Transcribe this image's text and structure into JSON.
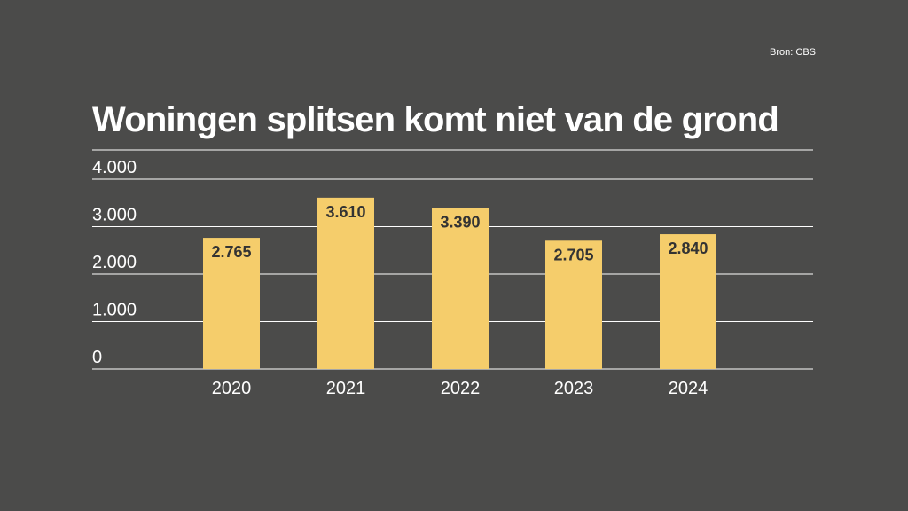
{
  "source": "Bron: CBS",
  "colors": {
    "background": "#4b4b4a",
    "bar": "#f5cd6b",
    "grid": "#ffffff",
    "value_label": "#333333"
  },
  "chart_data": {
    "type": "bar",
    "title": "Woningen splitsen komt niet van de grond",
    "xlabel": "",
    "ylabel": "",
    "categories": [
      "2020",
      "2021",
      "2022",
      "2023",
      "2024"
    ],
    "values": [
      2765,
      3610,
      3390,
      2705,
      2840
    ],
    "value_labels": [
      "2.765",
      "3.610",
      "3.390",
      "2.705",
      "2.840"
    ],
    "yticks": [
      0,
      1000,
      2000,
      3000,
      4000
    ],
    "ytick_labels": [
      "0",
      "1.000",
      "2.000",
      "3.000",
      "4.000"
    ],
    "ylim": [
      0,
      4000
    ],
    "grid": true,
    "legend": "none"
  }
}
